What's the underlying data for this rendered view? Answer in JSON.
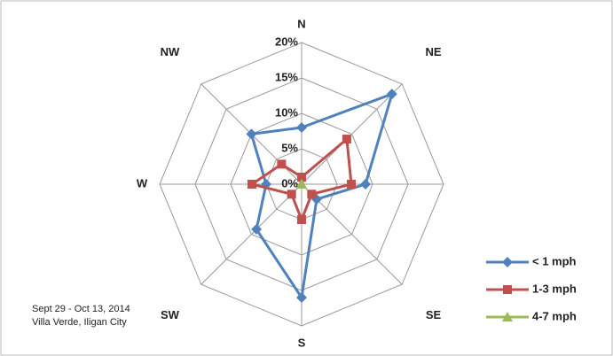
{
  "chart_data": {
    "type": "radar",
    "categories": [
      "N",
      "NE",
      null,
      "SE",
      "S",
      "SW",
      "W",
      "NW"
    ],
    "series": [
      {
        "name": "< 1 mph",
        "color": "#4f81bd",
        "marker": "diamond",
        "values": [
          8,
          18,
          9,
          3,
          16,
          9,
          5,
          10
        ]
      },
      {
        "name": "1-3 mph",
        "color": "#c0504d",
        "marker": "square",
        "values": [
          1,
          9,
          7,
          2,
          5,
          2,
          7,
          4
        ]
      },
      {
        "name": "4-7 mph",
        "color": "#9bbb59",
        "marker": "triangle",
        "values": [
          0,
          0,
          0,
          0,
          0,
          0,
          0,
          0
        ]
      }
    ],
    "rlim": [
      0,
      20
    ],
    "rticks": [
      {
        "value": 0,
        "label": "0%"
      },
      {
        "value": 5,
        "label": "5%"
      },
      {
        "value": 10,
        "label": "10%"
      },
      {
        "value": 15,
        "label": "15%"
      },
      {
        "value": 20,
        "label": "20%"
      }
    ],
    "grid": true,
    "legend": "right",
    "annotations": [
      "Sept 29 - Oct 13, 2014",
      "Villa Verde, Iligan City"
    ]
  }
}
